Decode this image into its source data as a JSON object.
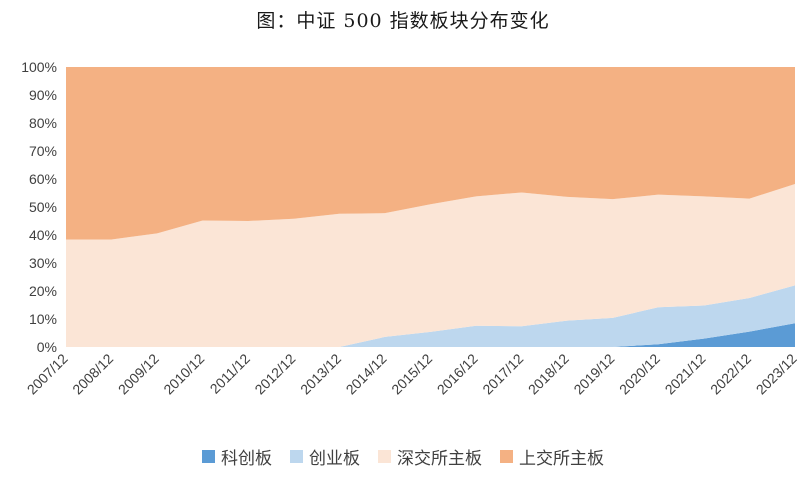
{
  "title": "图：中证 500 指数板块分布变化",
  "chart_data": {
    "type": "area",
    "stacked": true,
    "x": [
      "2007/12",
      "2008/12",
      "2009/12",
      "2010/12",
      "2011/12",
      "2012/12",
      "2013/12",
      "2014/12",
      "2015/12",
      "2016/12",
      "2017/12",
      "2018/12",
      "2019/12",
      "2020/12",
      "2021/12",
      "2022/12",
      "2023/12"
    ],
    "ylim": [
      0,
      100
    ],
    "y_ticks": [
      "0%",
      "10%",
      "20%",
      "30%",
      "40%",
      "50%",
      "60%",
      "70%",
      "80%",
      "90%",
      "100%"
    ],
    "grid": false,
    "legend_position": "bottom",
    "series": [
      {
        "name": "科创板",
        "color": "#5b9bd5",
        "values": [
          0,
          0,
          0,
          0,
          0,
          0,
          0,
          0,
          0,
          0,
          0,
          0,
          0,
          1,
          3,
          5.5,
          8.5
        ]
      },
      {
        "name": "创业板",
        "color": "#bdd7ee",
        "values": [
          0,
          0,
          0,
          0,
          0,
          0,
          0,
          3.6,
          5.4,
          7.6,
          7.4,
          9.4,
          10.4,
          13.2,
          11.8,
          12,
          13.5
        ]
      },
      {
        "name": "深交所主板",
        "color": "#fbe5d6",
        "values": [
          38.4,
          38.4,
          40.6,
          45.2,
          45,
          45.8,
          47.6,
          44.2,
          45.6,
          46.2,
          47.8,
          44.2,
          42.4,
          40.2,
          39,
          35.5,
          36.2
        ]
      },
      {
        "name": "上交所主板",
        "color": "#f4b183",
        "values": [
          61.6,
          61.6,
          59.4,
          54.8,
          55,
          54.2,
          52.4,
          52.2,
          49,
          46.2,
          44.8,
          46.4,
          47.2,
          45.6,
          46.2,
          47,
          41.8
        ]
      }
    ]
  }
}
